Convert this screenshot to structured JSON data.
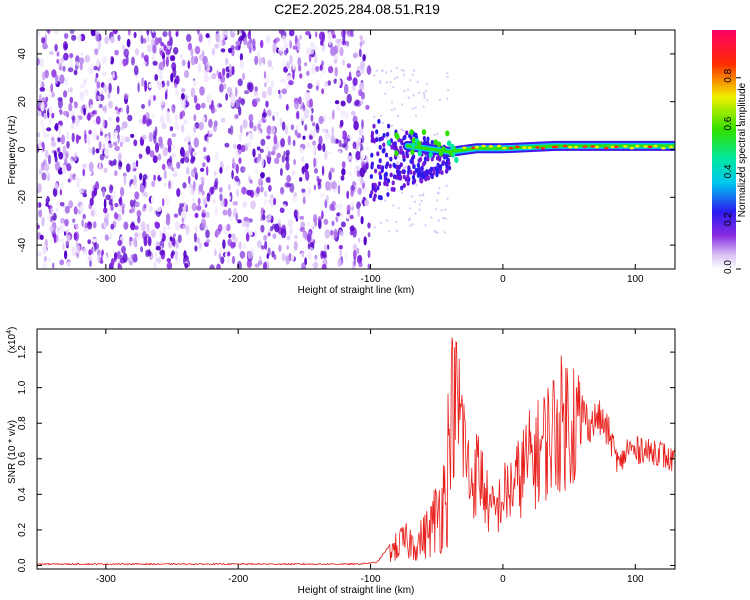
{
  "title": "C2E2.2025.284.08.51.R19",
  "colors": {
    "snr_line": "#e8201c",
    "spectrogram_noise": "#8a2be2",
    "frame": "#000000"
  },
  "chart_data": [
    {
      "type": "heatmap",
      "name": "spectrogram",
      "title": "C2E2.2025.284.08.51.R19",
      "xlabel": "Height of straight line (km)",
      "ylabel": "Frequency (Hz)",
      "xlim": [
        -352,
        130
      ],
      "ylim": [
        -50,
        50
      ],
      "xticks": [
        -300,
        -200,
        -100,
        0,
        100
      ],
      "yticks": [
        -40,
        -20,
        0,
        20,
        40
      ],
      "noise_region_x": [
        -352,
        -101
      ],
      "signal_onset_x": -101,
      "signal_center_freq_hz": 0,
      "colorbar": {
        "label": "Normalized spectral amplitude",
        "range": [
          0.0,
          1.0
        ],
        "ticks": [
          "0.0",
          "0.2",
          "0.4",
          "0.6",
          "0.8"
        ],
        "colormap": "rainbow (white-violet-blue-cyan-green-yellow-red-magenta)"
      }
    },
    {
      "type": "line",
      "name": "snr",
      "xlabel": "Height of straight line (km)",
      "ylabel": "SNR (10 * v/v)",
      "yscale_label": "(x10",
      "yscale_exponent": "4",
      "xlim": [
        -352,
        130
      ],
      "ylim": [
        -0.02,
        1.33
      ],
      "xticks": [
        -300,
        -200,
        -100,
        0,
        100
      ],
      "yticks": [
        "0.0",
        "0.2",
        "0.4",
        "0.6",
        "0.8",
        "1.0",
        "1.2"
      ],
      "series": [
        {
          "name": "SNR",
          "x": [
            -352,
            -300,
            -200,
            -110,
            -95,
            -85,
            -75,
            -65,
            -55,
            -45,
            -38,
            -32,
            -25,
            -18,
            -10,
            -5,
            0,
            5,
            10,
            18,
            25,
            32,
            40,
            46,
            52,
            58,
            65,
            72,
            80,
            88,
            95,
            100,
            105,
            110,
            115,
            120,
            125,
            130
          ],
          "y": [
            0.01,
            0.01,
            0.01,
            0.01,
            0.02,
            0.12,
            0.2,
            0.18,
            0.3,
            0.55,
            1.2,
            1.1,
            0.6,
            0.7,
            0.4,
            0.4,
            0.5,
            0.55,
            0.6,
            0.75,
            0.8,
            0.9,
            1.0,
            1.05,
            1.1,
            1.0,
            0.85,
            0.9,
            0.8,
            0.6,
            0.72,
            0.68,
            0.72,
            0.68,
            0.7,
            0.68,
            0.64,
            0.64
          ]
        }
      ]
    }
  ]
}
